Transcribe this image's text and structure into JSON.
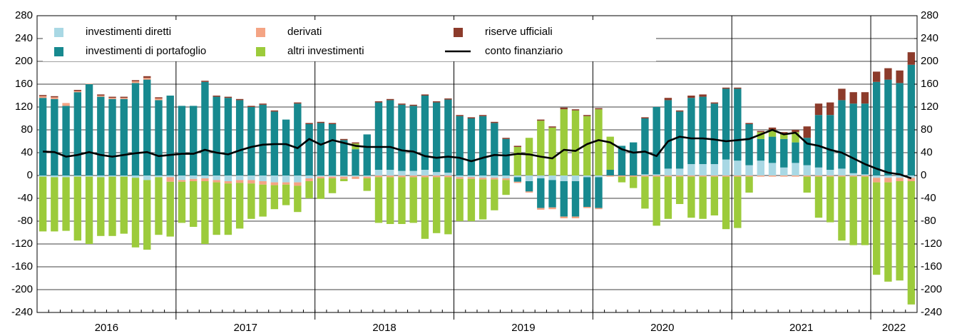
{
  "chart_data": {
    "type": "bar",
    "stacked": true,
    "legend": "top-left",
    "grid": true,
    "categories": [
      null,
      null,
      null,
      null,
      null,
      null,
      null,
      null,
      null,
      null,
      null,
      null,
      null,
      null,
      null,
      null,
      null,
      null,
      null,
      null,
      null,
      null,
      null,
      null,
      null,
      null,
      null,
      null,
      null,
      null,
      null,
      null,
      null,
      null,
      null,
      null,
      null,
      null,
      null,
      null,
      null,
      null,
      null,
      null,
      null,
      null,
      null,
      null,
      null,
      null,
      null,
      null,
      null,
      null,
      null,
      null,
      null,
      null,
      null,
      null,
      null,
      null,
      null,
      null,
      null,
      null,
      null,
      null,
      null,
      null,
      null,
      null,
      null,
      null,
      null,
      null
    ],
    "year_labels": [
      "2016",
      "2017",
      "2018",
      "2019",
      "2020",
      "2021",
      "2022"
    ],
    "ylim": [
      -240,
      280
    ],
    "yticks": [
      -240,
      -200,
      -160,
      -120,
      -80,
      -40,
      0,
      40,
      80,
      120,
      160,
      200,
      240,
      280
    ],
    "y2lim": [
      -240,
      280
    ],
    "y2ticks": [
      -240,
      -200,
      -160,
      -120,
      -80,
      -40,
      0,
      40,
      80,
      120,
      160,
      200,
      240,
      280
    ],
    "series": [
      {
        "name": "investimenti diretti",
        "color": "#a9d8e4",
        "values": [
          -2,
          -3,
          -3,
          -2,
          -2,
          -3,
          -2,
          -2,
          -4,
          -8,
          -3,
          -3,
          -8,
          -6,
          -5,
          -8,
          -10,
          -8,
          -8,
          -10,
          -12,
          -12,
          -12,
          -5,
          -2,
          -2,
          -2,
          -2,
          -2,
          10,
          10,
          8,
          8,
          10,
          6,
          5,
          -3,
          -3,
          -4,
          -4,
          -5,
          -3,
          -10,
          -5,
          -8,
          -10,
          -10,
          -3,
          -3,
          0,
          0,
          0,
          2,
          2,
          12,
          12,
          20,
          20,
          20,
          28,
          26,
          18,
          26,
          22,
          14,
          22,
          18,
          14,
          10,
          12,
          4,
          2,
          -4,
          -4,
          -4,
          -4
        ]
      },
      {
        "name": "investimenti di portafoglio",
        "color": "#17898f",
        "values": [
          136,
          134,
          122,
          146,
          160,
          138,
          134,
          134,
          162,
          168,
          132,
          140,
          122,
          122,
          164,
          138,
          136,
          132,
          120,
          124,
          112,
          98,
          126,
          90,
          92,
          90,
          62,
          46,
          72,
          118,
          122,
          116,
          114,
          130,
          122,
          128,
          104,
          100,
          104,
          92,
          64,
          -8,
          -18,
          -52,
          -48,
          -62,
          -62,
          -52,
          -54,
          10,
          52,
          58,
          98,
          118,
          120,
          100,
          116,
          118,
          106,
          124,
          126,
          72,
          38,
          46,
          50,
          36,
          48,
          92,
          96,
          120,
          122,
          124,
          164,
          168,
          162,
          194
        ]
      },
      {
        "name": "derivati",
        "color": "#f4a484",
        "values": [
          3,
          3,
          5,
          2,
          1,
          2,
          2,
          2,
          3,
          3,
          3,
          -8,
          -3,
          -4,
          -5,
          -4,
          -4,
          -5,
          -6,
          -6,
          -5,
          -4,
          -6,
          -5,
          -3,
          -3,
          -4,
          -4,
          -3,
          -3,
          -3,
          -3,
          -3,
          -3,
          -3,
          -3,
          -3,
          -3,
          -3,
          -3,
          -3,
          -2,
          -2,
          -3,
          -3,
          -3,
          -3,
          -2,
          -2,
          -2,
          -2,
          -2,
          -2,
          -2,
          -2,
          -2,
          -2,
          -2,
          -2,
          -2,
          -2,
          -2,
          -2,
          -2,
          -2,
          -2,
          -2,
          -2,
          -2,
          -2,
          -2,
          -2,
          -8,
          -8,
          -6,
          -6
        ]
      },
      {
        "name": "altri investimenti",
        "color": "#9ccb3b",
        "values": [
          -96,
          -95,
          -94,
          -112,
          -118,
          -103,
          -104,
          -100,
          -122,
          -122,
          -101,
          -96,
          -72,
          -80,
          -110,
          -92,
          -90,
          -80,
          -62,
          -56,
          -42,
          -36,
          -46,
          -30,
          -36,
          -26,
          -4,
          10,
          -22,
          -80,
          -82,
          -82,
          -80,
          -108,
          -98,
          -100,
          -74,
          -74,
          -70,
          -54,
          -26,
          50,
          66,
          96,
          84,
          116,
          114,
          104,
          116,
          58,
          -10,
          -20,
          -56,
          -86,
          -74,
          -48,
          -72,
          -74,
          -68,
          -92,
          -90,
          -28,
          12,
          12,
          8,
          18,
          -28,
          -72,
          -80,
          -112,
          -120,
          -120,
          -162,
          -174,
          -174,
          -216
        ]
      },
      {
        "name": "riserve ufficiali",
        "color": "#8c3b2b",
        "values": [
          2,
          2,
          0,
          2,
          0,
          2,
          2,
          2,
          2,
          3,
          2,
          0,
          0,
          0,
          2,
          2,
          2,
          2,
          2,
          2,
          2,
          0,
          2,
          2,
          2,
          2,
          2,
          2,
          0,
          2,
          2,
          2,
          2,
          2,
          2,
          2,
          2,
          2,
          2,
          2,
          2,
          2,
          0,
          2,
          2,
          3,
          2,
          2,
          2,
          0,
          0,
          0,
          2,
          0,
          4,
          2,
          4,
          4,
          2,
          2,
          2,
          2,
          2,
          4,
          4,
          4,
          20,
          20,
          22,
          20,
          20,
          20,
          18,
          20,
          22,
          22
        ]
      },
      {
        "name": "conto finanziario",
        "color": "#000000",
        "style": "line",
        "values": [
          42,
          41,
          33,
          36,
          41,
          36,
          33,
          36,
          39,
          41,
          34,
          36,
          38,
          38,
          45,
          40,
          37,
          44,
          50,
          54,
          55,
          55,
          48,
          64,
          54,
          62,
          57,
          52,
          50,
          50,
          50,
          44,
          42,
          34,
          31,
          33,
          31,
          25,
          31,
          36,
          35,
          38,
          37,
          33,
          30,
          45,
          43,
          55,
          62,
          58,
          46,
          40,
          42,
          34,
          60,
          68,
          65,
          65,
          63,
          60,
          62,
          64,
          72,
          80,
          72,
          75,
          56,
          52,
          45,
          40,
          30,
          20,
          12,
          5,
          2,
          -5
        ]
      }
    ]
  }
}
